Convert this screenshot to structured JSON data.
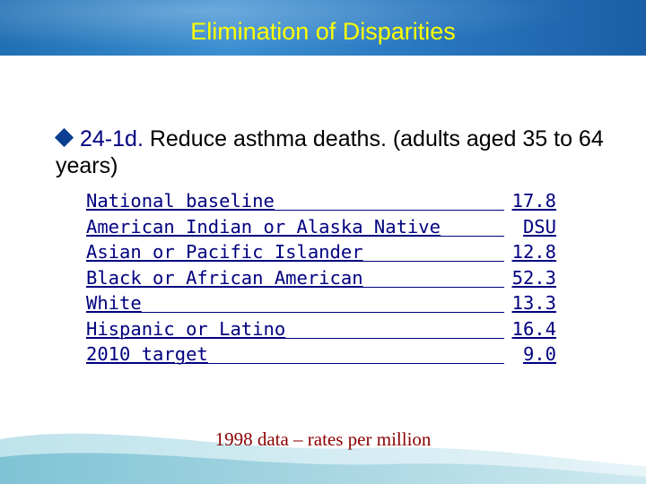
{
  "slide": {
    "title": "Elimination of Disparities",
    "objective_code": "24-1d.",
    "objective_text": " Reduce asthma deaths. (adults aged 35 to 64 years)",
    "rows": [
      {
        "label": "National baseline",
        "value": "17.8"
      },
      {
        "label": "American Indian or Alaska Native",
        "value": "DSU"
      },
      {
        "label": "Asian or Pacific Islander",
        "value": "12.8"
      },
      {
        "label": "Black or African American",
        "value": "52.3"
      },
      {
        "label": "White",
        "value": "13.3"
      },
      {
        "label": "Hispanic or Latino",
        "value": "16.4"
      },
      {
        "label": "2010 target",
        "value": "9.0"
      }
    ],
    "footnote": "1998 data – rates per million"
  },
  "colors": {
    "title_text": "#ffff00",
    "title_bar": "#2a78c0",
    "table_text": "#000080",
    "footnote_text": "#8b0000",
    "bullet": "#0b3d91"
  },
  "icons": {
    "bullet": "diamond-bullet-icon"
  }
}
